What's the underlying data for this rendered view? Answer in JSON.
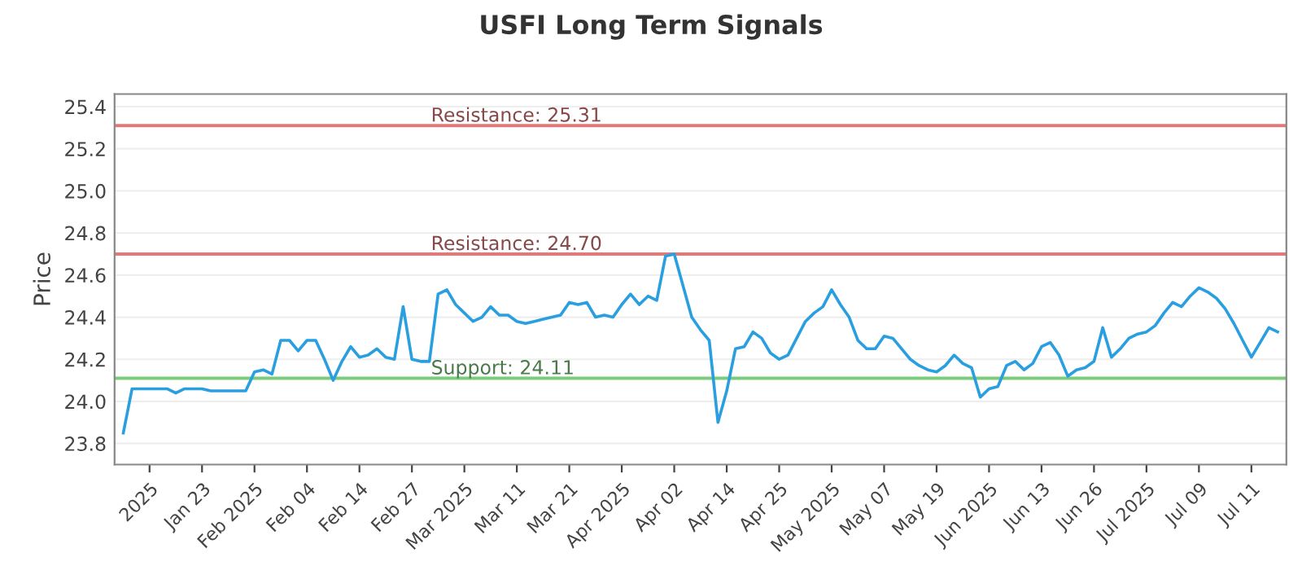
{
  "chart_data": {
    "type": "line",
    "title": "USFI Long Term Signals",
    "ylabel": "Price",
    "categories": [
      null,
      null,
      null,
      "2025",
      null,
      null,
      null,
      null,
      null,
      "Jan 23",
      null,
      null,
      null,
      null,
      null,
      "Feb 2025",
      null,
      null,
      null,
      null,
      null,
      "Feb 04",
      null,
      null,
      null,
      null,
      null,
      "Feb 14",
      null,
      null,
      null,
      null,
      null,
      "Feb 27",
      null,
      null,
      null,
      null,
      null,
      "Mar 2025",
      null,
      null,
      null,
      null,
      null,
      "Mar 11",
      null,
      null,
      null,
      null,
      null,
      "Mar 21",
      null,
      null,
      null,
      null,
      null,
      "Apr 2025",
      null,
      null,
      null,
      null,
      null,
      "Apr 02",
      null,
      null,
      null,
      null,
      null,
      "Apr 14",
      null,
      null,
      null,
      null,
      null,
      "Apr 25",
      null,
      null,
      null,
      null,
      null,
      "May 2025",
      null,
      null,
      null,
      null,
      null,
      "May 07",
      null,
      null,
      null,
      null,
      null,
      "May 19",
      null,
      null,
      null,
      null,
      null,
      "Jun 2025",
      null,
      null,
      null,
      null,
      null,
      "Jun 13",
      null,
      null,
      null,
      null,
      null,
      "Jun 26",
      null,
      null,
      null,
      null,
      null,
      "Jul 2025",
      null,
      null,
      null,
      null,
      null,
      "Jul 09",
      null,
      null,
      null,
      null,
      null,
      "Jul 11",
      null,
      null,
      null
    ],
    "series": [
      {
        "color": "#2a9fe0",
        "values": [
          23.85,
          24.06,
          24.06,
          24.06,
          24.06,
          24.06,
          24.04,
          24.06,
          24.06,
          24.06,
          24.05,
          24.05,
          24.05,
          24.05,
          24.05,
          24.14,
          24.15,
          24.13,
          24.29,
          24.29,
          24.24,
          24.29,
          24.29,
          24.2,
          24.1,
          24.19,
          24.26,
          24.21,
          24.22,
          24.25,
          24.21,
          24.2,
          24.45,
          24.2,
          24.19,
          24.19,
          24.51,
          24.53,
          24.46,
          24.42,
          24.38,
          24.4,
          24.45,
          24.41,
          24.41,
          24.38,
          24.37,
          24.38,
          24.39,
          24.4,
          24.41,
          24.47,
          24.46,
          24.47,
          24.4,
          24.41,
          24.4,
          24.46,
          24.51,
          24.46,
          24.5,
          24.48,
          24.69,
          24.7,
          24.55,
          24.4,
          24.34,
          24.29,
          23.9,
          24.05,
          24.25,
          24.26,
          24.33,
          24.3,
          24.23,
          24.2,
          24.22,
          24.3,
          24.38,
          24.42,
          24.45,
          24.53,
          24.46,
          24.4,
          24.29,
          24.25,
          24.25,
          24.31,
          24.3,
          24.25,
          24.2,
          24.17,
          24.15,
          24.14,
          24.17,
          24.22,
          24.18,
          24.16,
          24.02,
          24.06,
          24.07,
          24.17,
          24.19,
          24.15,
          24.18,
          24.26,
          24.28,
          24.22,
          24.12,
          24.15,
          24.16,
          24.19,
          24.35,
          24.21,
          24.25,
          24.3,
          24.32,
          24.33,
          24.36,
          24.42,
          24.47,
          24.45,
          24.5,
          24.54,
          24.52,
          24.49,
          24.44,
          24.37,
          24.29,
          24.21,
          24.28,
          24.35,
          24.33
        ]
      }
    ],
    "ylim": [
      23.7,
      25.46
    ],
    "yticks": [
      23.8,
      {
        "value": 24,
        "label": "24.0"
      },
      24.2,
      24.4,
      24.6,
      24.8,
      {
        "value": 25,
        "label": "25.0"
      },
      25.2,
      25.4
    ],
    "grid": "y",
    "legend": false,
    "marker": "none",
    "line_style": "solid",
    "ref_lines": [
      {
        "axis": "y",
        "value": 25.31,
        "label": "Resistance: 25.31",
        "color": "#e07a7a"
      },
      {
        "axis": "y",
        "value": 24.7,
        "label": "Resistance: 24.70",
        "color": "#e07a7a"
      },
      {
        "axis": "y",
        "value": 24.11,
        "label": "Support: 24.11",
        "color": "#7acc7a"
      }
    ]
  }
}
